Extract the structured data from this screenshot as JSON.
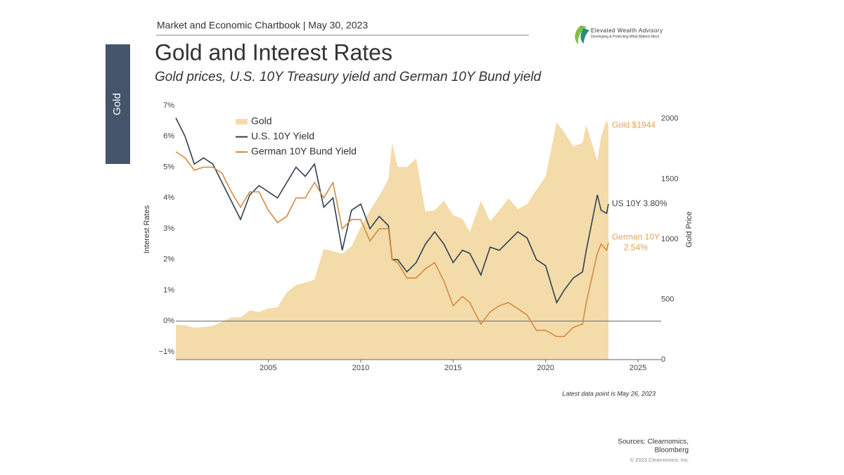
{
  "header": "Market and Economic Chartbook | May 30, 2023",
  "logo": {
    "name": "Elevated Wealth Advisory",
    "tagline": "Developing & Protecting What Matters Most"
  },
  "side_tab": "Gold",
  "chart_data": {
    "type": "line",
    "title": "Gold and Interest Rates",
    "subtitle": "Gold prices, U.S. 10Y Treasury yield and German 10Y Bund yield",
    "y_label": "Interest Rates",
    "y2_label": "Gold Price",
    "x": [
      2000.0,
      2000.5,
      2001.0,
      2001.5,
      2002.0,
      2002.5,
      2003.0,
      2003.5,
      2004.0,
      2004.5,
      2005.0,
      2005.5,
      2006.0,
      2006.5,
      2007.0,
      2007.5,
      2008.0,
      2008.5,
      2009.0,
      2009.5,
      2010.0,
      2010.5,
      2011.0,
      2011.5,
      2011.7,
      2012.0,
      2012.5,
      2013.0,
      2013.5,
      2014.0,
      2014.5,
      2015.0,
      2015.5,
      2015.9,
      2016.5,
      2017.0,
      2017.5,
      2018.0,
      2018.5,
      2019.0,
      2019.5,
      2020.0,
      2020.6,
      2021.0,
      2021.5,
      2022.0,
      2022.2,
      2022.8,
      2023.0,
      2023.3,
      2023.4
    ],
    "xlim": [
      2000,
      2026.25
    ],
    "xticks": [
      2005,
      2010,
      2015,
      2020,
      2025
    ],
    "ylim": [
      -1.25,
      7
    ],
    "yticks": [
      {
        "value": -1,
        "label": "−1%"
      },
      {
        "value": 0,
        "label": "0%"
      },
      {
        "value": 1,
        "label": "1%"
      },
      {
        "value": 2,
        "label": "2%"
      },
      {
        "value": 3,
        "label": "3%"
      },
      {
        "value": 4,
        "label": "4%"
      },
      {
        "value": 5,
        "label": "5%"
      },
      {
        "value": 6,
        "label": "6%"
      },
      {
        "value": 7,
        "label": "7%"
      }
    ],
    "y2lim": [
      0,
      2110
    ],
    "y2ticks": [
      0,
      500,
      1000,
      1500,
      2000
    ],
    "hline": 0,
    "series": [
      {
        "name": "Gold",
        "color": "#f3dcaa",
        "axis": "y2",
        "style": "area",
        "label_color": "#e0a458",
        "end_label": [
          "Gold $1944"
        ],
        "values": [
          290,
          285,
          265,
          270,
          280,
          315,
          350,
          350,
          410,
          395,
          425,
          435,
          560,
          620,
          640,
          665,
          920,
          900,
          880,
          940,
          1100,
          1240,
          1360,
          1500,
          1800,
          1600,
          1600,
          1670,
          1230,
          1240,
          1320,
          1200,
          1170,
          1060,
          1320,
          1150,
          1240,
          1340,
          1250,
          1290,
          1410,
          1520,
          1970,
          1890,
          1770,
          1800,
          1950,
          1650,
          1850,
          1990,
          1944
        ]
      },
      {
        "name": "U.S. 10Y Yield",
        "color": "#2f3e50",
        "label_color": "#444",
        "end_label": [
          "US 10Y 3.80%"
        ],
        "values": [
          6.6,
          6.0,
          5.1,
          5.3,
          5.1,
          4.5,
          3.9,
          3.3,
          4.1,
          4.4,
          4.2,
          4.0,
          4.5,
          5.0,
          4.7,
          5.1,
          3.7,
          4.0,
          2.3,
          3.6,
          3.8,
          3.0,
          3.4,
          3.1,
          2.0,
          2.0,
          1.6,
          1.9,
          2.5,
          2.9,
          2.5,
          1.9,
          2.3,
          2.2,
          1.5,
          2.4,
          2.3,
          2.6,
          2.9,
          2.7,
          2.0,
          1.8,
          0.6,
          1.0,
          1.4,
          1.6,
          2.3,
          4.1,
          3.6,
          3.5,
          3.8
        ]
      },
      {
        "name": "German 10Y Bund Yield",
        "color": "#d58a3e",
        "label_color": "#e0a458",
        "end_label": [
          "German 10Y",
          "2.54%"
        ],
        "values": [
          5.5,
          5.3,
          4.9,
          5.0,
          5.0,
          4.8,
          4.2,
          3.7,
          4.2,
          4.2,
          3.6,
          3.2,
          3.4,
          4.0,
          4.0,
          4.5,
          4.0,
          4.5,
          3.0,
          3.3,
          3.3,
          2.6,
          3.0,
          3.0,
          2.0,
          1.9,
          1.4,
          1.4,
          1.7,
          1.9,
          1.3,
          0.5,
          0.8,
          0.6,
          -0.1,
          0.3,
          0.5,
          0.6,
          0.4,
          0.2,
          -0.3,
          -0.3,
          -0.5,
          -0.5,
          -0.2,
          -0.1,
          0.6,
          2.2,
          2.5,
          2.3,
          2.54
        ]
      }
    ],
    "note": "Latest data point is May 26, 2023"
  },
  "sources": [
    "Sources: Clearnomics,",
    "Bloomberg"
  ],
  "copyright": "© 2023 Clearnomics, Inc."
}
